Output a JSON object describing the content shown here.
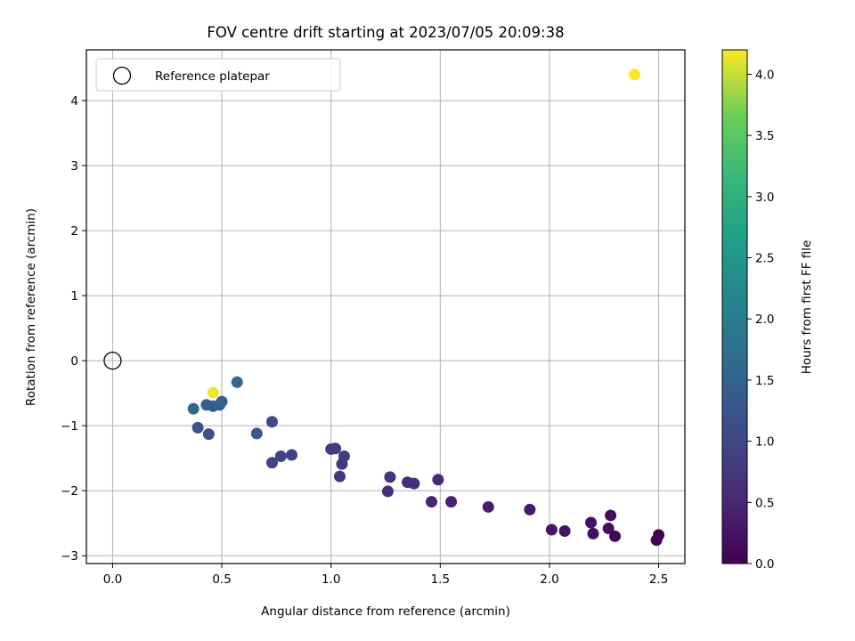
{
  "chart_data": {
    "type": "scatter",
    "title": "FOV centre drift starting at 2023/07/05 20:09:38",
    "xlabel": "Angular distance from reference (arcmin)",
    "ylabel": "Rotation from reference (arcmin)",
    "xlim": [
      -0.12,
      2.62
    ],
    "ylim": [
      -3.12,
      4.78
    ],
    "xticks": [
      0.0,
      0.5,
      1.0,
      1.5,
      2.0,
      2.5
    ],
    "xtick_labels": [
      "0.0",
      "0.5",
      "1.0",
      "1.5",
      "2.0",
      "2.5"
    ],
    "yticks": [
      -3,
      -2,
      -1,
      0,
      1,
      2,
      3,
      4
    ],
    "ytick_labels": [
      "−3",
      "−2",
      "−1",
      "0",
      "1",
      "2",
      "3",
      "4"
    ],
    "grid": true,
    "legend": {
      "placement": "top-left",
      "entries": [
        "Reference platepar"
      ]
    },
    "reference_point": {
      "x": 0.0,
      "y": 0.0,
      "label": "Reference platepar"
    },
    "colorbar": {
      "label": "Hours from first FF file",
      "colormap": "viridis",
      "range": [
        0.0,
        4.2
      ],
      "ticks": [
        0.0,
        0.5,
        1.0,
        1.5,
        2.0,
        2.5,
        3.0,
        3.5,
        4.0
      ],
      "tick_labels": [
        "0.0",
        "0.5",
        "1.0",
        "1.5",
        "2.0",
        "2.5",
        "3.0",
        "3.5",
        "4.0"
      ]
    },
    "points": [
      {
        "x": 2.5,
        "y": -2.68,
        "hours": 0.02
      },
      {
        "x": 2.49,
        "y": -2.76,
        "hours": 0.05
      },
      {
        "x": 2.3,
        "y": -2.7,
        "hours": 0.1
      },
      {
        "x": 2.27,
        "y": -2.58,
        "hours": 0.15
      },
      {
        "x": 2.28,
        "y": -2.38,
        "hours": 0.18
      },
      {
        "x": 2.2,
        "y": -2.66,
        "hours": 0.2
      },
      {
        "x": 2.19,
        "y": -2.49,
        "hours": 0.22
      },
      {
        "x": 2.07,
        "y": -2.62,
        "hours": 0.25
      },
      {
        "x": 2.01,
        "y": -2.6,
        "hours": 0.28
      },
      {
        "x": 1.91,
        "y": -2.29,
        "hours": 0.33
      },
      {
        "x": 1.72,
        "y": -2.25,
        "hours": 0.38
      },
      {
        "x": 1.55,
        "y": -2.17,
        "hours": 0.45
      },
      {
        "x": 1.46,
        "y": -2.17,
        "hours": 0.5
      },
      {
        "x": 1.49,
        "y": -1.83,
        "hours": 0.55
      },
      {
        "x": 1.38,
        "y": -1.89,
        "hours": 0.6
      },
      {
        "x": 1.35,
        "y": -1.87,
        "hours": 0.62
      },
      {
        "x": 1.26,
        "y": -2.01,
        "hours": 0.65
      },
      {
        "x": 1.27,
        "y": -1.79,
        "hours": 0.7
      },
      {
        "x": 1.04,
        "y": -1.78,
        "hours": 0.75
      },
      {
        "x": 1.05,
        "y": -1.59,
        "hours": 0.78
      },
      {
        "x": 1.06,
        "y": -1.47,
        "hours": 0.82
      },
      {
        "x": 1.02,
        "y": -1.35,
        "hours": 0.85
      },
      {
        "x": 1.0,
        "y": -1.36,
        "hours": 0.88
      },
      {
        "x": 0.82,
        "y": -1.45,
        "hours": 0.92
      },
      {
        "x": 0.77,
        "y": -1.47,
        "hours": 0.95
      },
      {
        "x": 0.73,
        "y": -1.57,
        "hours": 0.98
      },
      {
        "x": 0.73,
        "y": -0.94,
        "hours": 1.05
      },
      {
        "x": 0.44,
        "y": -1.13,
        "hours": 1.15
      },
      {
        "x": 0.39,
        "y": -1.03,
        "hours": 1.2
      },
      {
        "x": 0.66,
        "y": -1.12,
        "hours": 1.28
      },
      {
        "x": 0.46,
        "y": -0.7,
        "hours": 1.32
      },
      {
        "x": 0.43,
        "y": -0.68,
        "hours": 1.38
      },
      {
        "x": 0.49,
        "y": -0.68,
        "hours": 1.4
      },
      {
        "x": 0.5,
        "y": -0.63,
        "hours": 1.45
      },
      {
        "x": 0.37,
        "y": -0.74,
        "hours": 1.5
      },
      {
        "x": 0.57,
        "y": -0.33,
        "hours": 1.55
      },
      {
        "x": 0.46,
        "y": -0.49,
        "hours": 4.15
      },
      {
        "x": 2.39,
        "y": 4.4,
        "hours": 4.2
      }
    ]
  }
}
